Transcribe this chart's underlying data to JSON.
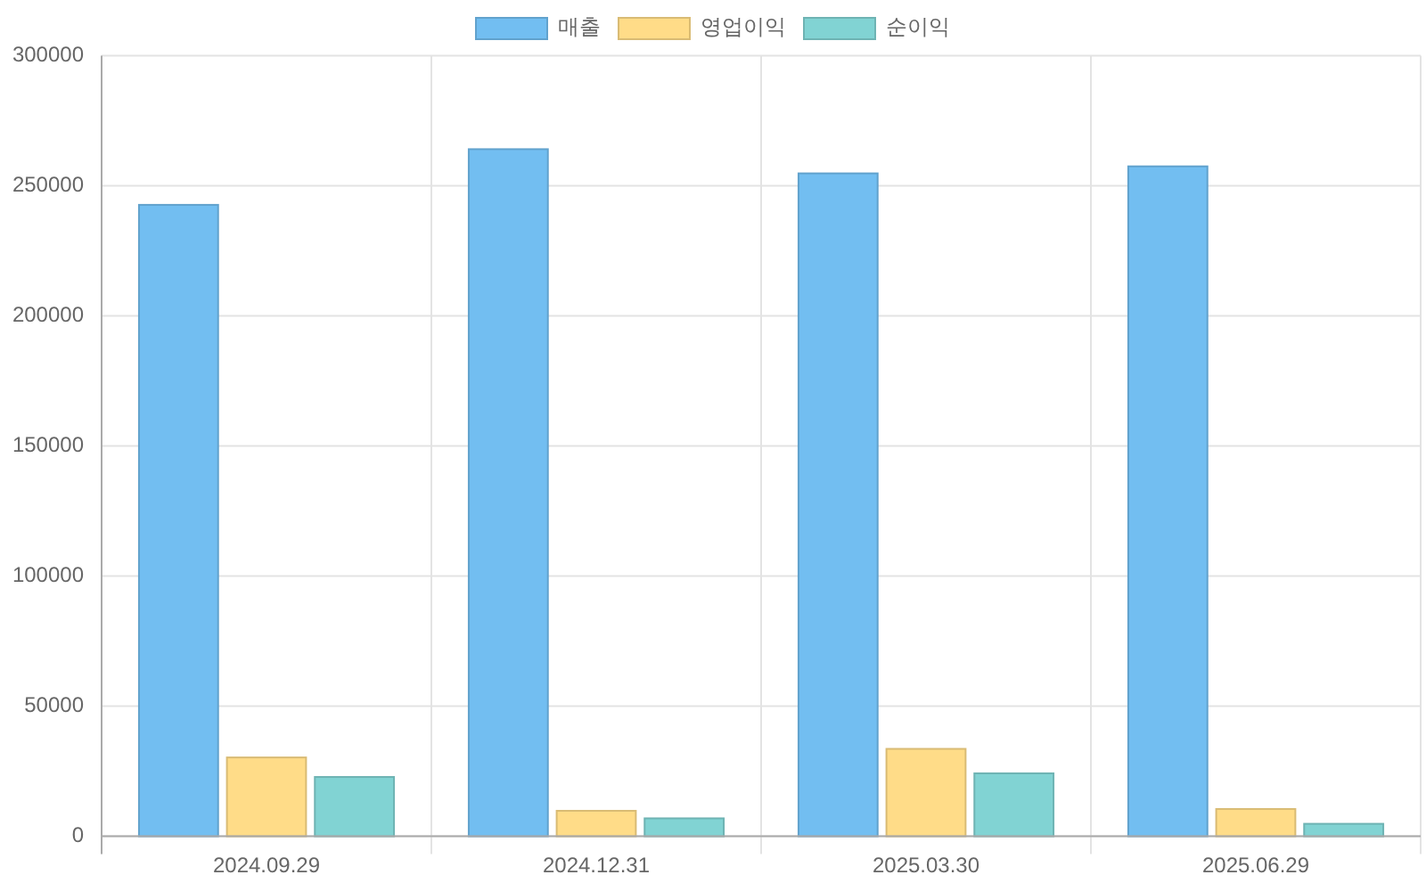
{
  "chart_data": {
    "type": "bar",
    "categories": [
      "2024.09.29",
      "2024.12.31",
      "2025.03.30",
      "2025.06.29"
    ],
    "series": [
      {
        "name": "매출",
        "color": "#72bef1",
        "values": [
          242700,
          264100,
          254800,
          257500
        ]
      },
      {
        "name": "영업이익",
        "color": "#ffdc88",
        "values": [
          30300,
          9800,
          33600,
          10500
        ]
      },
      {
        "name": "순이익",
        "color": "#81d3d3",
        "values": [
          22800,
          6900,
          24200,
          4800
        ]
      }
    ],
    "ylim": [
      0,
      300000
    ],
    "yticks": [
      0,
      50000,
      100000,
      150000,
      200000,
      250000,
      300000
    ],
    "grid": true,
    "legend": "top"
  }
}
